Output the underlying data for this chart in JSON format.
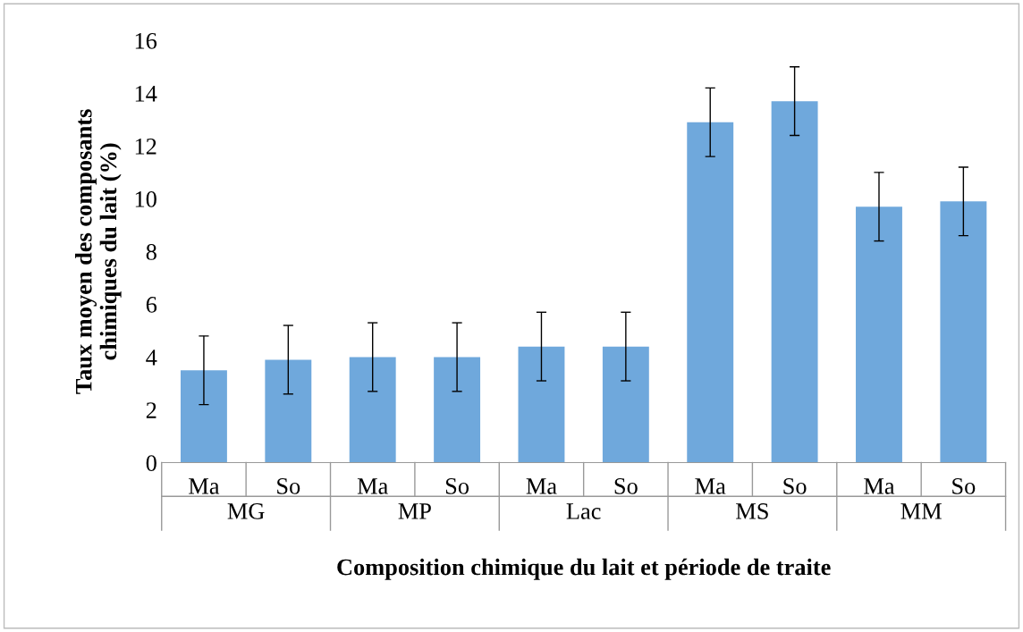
{
  "chart_data": {
    "type": "bar",
    "xlabel": "Composition chimique du lait et période de traite",
    "ylabel": "Taux moyen des composants\nchimiques du lait (%)",
    "categories": [
      "Ma",
      "So",
      "Ma",
      "So",
      "Ma",
      "So",
      "Ma",
      "So",
      "Ma",
      "So"
    ],
    "annotations": [
      "MG",
      "MP",
      "Lac",
      "MS",
      "MM"
    ],
    "values": [
      3.5,
      3.9,
      4.0,
      4.0,
      4.4,
      4.4,
      12.9,
      13.7,
      9.7,
      9.9
    ],
    "errors": [
      1.3,
      1.3,
      1.3,
      1.3,
      1.3,
      1.3,
      1.3,
      1.3,
      1.3,
      1.3
    ],
    "color": "#6fa8dc",
    "ylim": [
      0,
      16
    ],
    "yticks": [
      0,
      2,
      4,
      6,
      8,
      10,
      12,
      14,
      16
    ],
    "grid": false
  }
}
